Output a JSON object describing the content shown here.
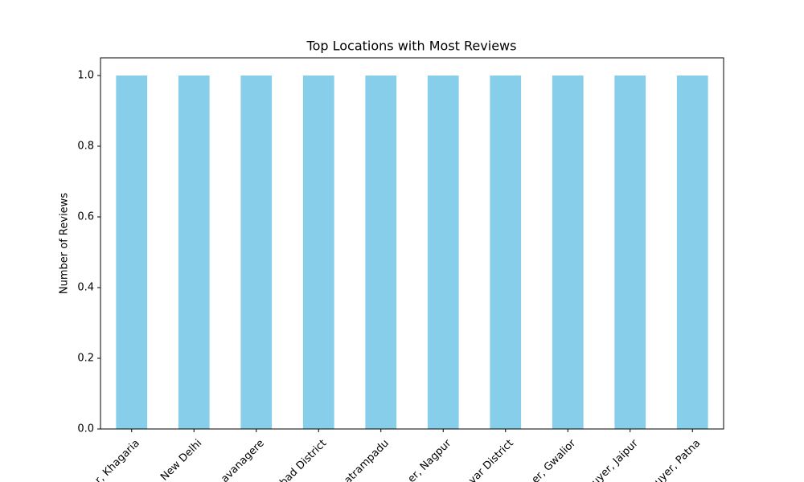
{
  "chart_data": {
    "type": "bar",
    "title": "Top Locations with Most Reviews",
    "y_label": "Number of Reviews",
    "categories": [
      "r, Khagaria",
      "New Delhi",
      "avanagere",
      "bad District",
      "atrampadu",
      "er, Nagpur",
      "var District",
      "er, Gwalior",
      "uyer, Jaipur",
      "uyer, Patna"
    ],
    "values": [
      1,
      1,
      1,
      1,
      1,
      1,
      1,
      1,
      1,
      1
    ],
    "color": "#87ceeb",
    "ylim": [
      0,
      1.05
    ],
    "yticks": [
      {
        "value": 0,
        "label": "0.0"
      },
      0.2,
      0.4,
      0.6,
      0.8,
      {
        "value": 1,
        "label": "1.0"
      }
    ],
    "grid": false
  }
}
